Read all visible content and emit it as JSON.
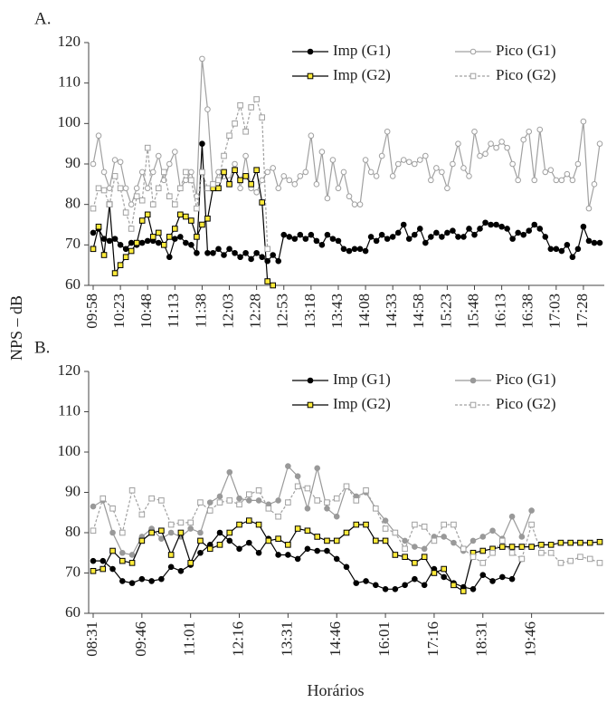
{
  "chart_data": [
    {
      "type": "line",
      "panel_label": "A.",
      "y_label": "NPS – dB",
      "categories": [
        "09:58",
        null,
        null,
        null,
        null,
        "10:23",
        null,
        null,
        null,
        null,
        "10:48",
        null,
        null,
        null,
        null,
        "11:13",
        null,
        null,
        null,
        null,
        "11:38",
        null,
        null,
        null,
        null,
        "12:03",
        null,
        null,
        null,
        null,
        "12:28",
        null,
        null,
        null,
        null,
        "12:53",
        null,
        null,
        null,
        null,
        "13:18",
        null,
        null,
        null,
        null,
        "13:43",
        null,
        null,
        null,
        null,
        "14:08",
        null,
        null,
        null,
        null,
        "14:33",
        null,
        null,
        null,
        null,
        "14:58",
        null,
        null,
        null,
        null,
        "15:23",
        null,
        null,
        null,
        null,
        "15:48",
        null,
        null,
        null,
        null,
        "16:13",
        null,
        null,
        null,
        null,
        "16:38",
        null,
        null,
        null,
        null,
        "17:03",
        null,
        null,
        null,
        null,
        "17:28",
        null,
        null,
        null
      ],
      "ylim": [
        60,
        120
      ],
      "yticks": [
        60,
        70,
        80,
        90,
        100,
        110,
        120
      ],
      "legend": "upper right",
      "series": [
        {
          "name": "Imp (G1)",
          "color": "#000000",
          "marker": "circle",
          "marker_fill": "#000000",
          "dashed": false,
          "values": [
            73,
            74,
            71.5,
            71,
            71.5,
            70,
            69,
            70.5,
            70,
            70.5,
            71,
            71,
            70.5,
            70,
            67,
            71.5,
            72,
            70.5,
            70,
            68,
            95,
            68,
            68,
            69,
            67.5,
            69,
            68,
            67,
            68,
            66.5,
            68,
            67,
            66,
            67.5,
            66,
            72.5,
            72,
            71.5,
            72.5,
            71.5,
            72.5,
            71,
            70,
            72.5,
            71.5,
            71,
            69,
            68.5,
            69,
            69,
            68.5,
            72,
            71,
            72.5,
            71.5,
            72,
            73,
            75,
            71.5,
            72.5,
            74,
            70.5,
            72,
            73,
            72,
            73,
            73.5,
            72,
            72,
            74,
            72.5,
            74,
            75.5,
            75,
            75,
            74.5,
            74,
            71.5,
            73,
            72.5,
            73.5,
            75,
            74,
            72,
            69,
            69,
            68.5,
            70,
            67,
            69,
            74.5,
            71,
            70.5,
            70.5
          ]
        },
        {
          "name": "Pico (G1)",
          "color": "#a0a0a0",
          "marker": "circle",
          "marker_fill": "#ffffff",
          "dashed": false,
          "values": [
            90,
            97,
            88,
            84,
            91,
            90.5,
            84,
            80,
            84,
            88,
            84,
            88,
            92,
            86,
            90,
            93,
            84,
            86,
            88,
            82,
            116,
            103.5,
            84,
            88,
            87,
            86,
            90,
            84,
            92,
            84,
            83,
            86,
            88,
            89,
            84,
            87,
            86,
            85,
            87,
            88,
            97,
            85,
            93,
            81.5,
            91,
            84,
            88,
            82,
            80,
            80,
            91,
            88,
            87,
            92,
            98,
            87,
            90,
            91,
            90.5,
            90,
            91,
            92,
            86,
            89,
            88,
            84,
            90,
            95,
            89,
            87,
            98,
            92,
            92.5,
            95,
            94,
            95.5,
            94,
            90,
            86,
            96,
            98,
            86,
            98.5,
            88,
            88.5,
            86,
            86,
            87.5,
            86,
            90,
            100.5,
            79,
            85,
            95
          ]
        },
        {
          "name": "Imp (G2)",
          "color": "#000000",
          "marker": "square",
          "marker_fill": "#ffeb3b",
          "dashed": false,
          "values": [
            69,
            74.5,
            67.5,
            80,
            63,
            65,
            67,
            68.5,
            70.5,
            76,
            77.5,
            72,
            73,
            70,
            72,
            74,
            77.5,
            77,
            76,
            72,
            75,
            76.5,
            84,
            84,
            88,
            85,
            88.5,
            86,
            87,
            85,
            88.5,
            80.5,
            61,
            60,
            null,
            null,
            null,
            null,
            null,
            null,
            null,
            null,
            null,
            null,
            null,
            null,
            null,
            null,
            null,
            null,
            null,
            null,
            null,
            null,
            null,
            null,
            null,
            null,
            null,
            null,
            null,
            null,
            null,
            null,
            null,
            null,
            null,
            null,
            null,
            null,
            null,
            null,
            null,
            null,
            null,
            null,
            null,
            null,
            null,
            null,
            null,
            null,
            null,
            null,
            null,
            null,
            null,
            null,
            null,
            null,
            null,
            null,
            null,
            null
          ]
        },
        {
          "name": "Pico (G2)",
          "color": "#a0a0a0",
          "marker": "square",
          "marker_fill": "#ffffff",
          "dashed": true,
          "values": [
            79,
            84,
            83.5,
            80,
            87,
            84,
            78,
            74,
            82,
            81,
            94,
            80,
            84,
            88,
            82,
            80,
            84,
            88,
            86,
            79,
            88,
            84,
            85,
            86,
            92,
            97,
            100,
            104.5,
            98,
            104,
            106,
            101.5,
            69,
            null,
            null,
            null,
            null,
            null,
            null,
            null,
            null,
            null,
            null,
            null,
            null,
            null,
            null,
            null,
            null,
            null,
            null,
            null,
            null,
            null,
            null,
            null,
            null,
            null,
            null,
            null,
            null,
            null,
            null,
            null,
            null,
            null,
            null,
            null,
            null,
            null,
            null,
            null,
            null,
            null,
            null,
            null,
            null,
            null,
            null,
            null,
            null,
            null,
            null,
            null,
            null,
            null,
            null,
            null,
            null,
            null,
            null,
            null,
            null,
            null
          ]
        }
      ]
    },
    {
      "type": "line",
      "panel_label": "B.",
      "x_label": "Horários",
      "categories": [
        "08:31",
        null,
        null,
        null,
        null,
        "09:46",
        null,
        null,
        null,
        null,
        "11:01",
        null,
        null,
        null,
        null,
        "12:16",
        null,
        null,
        null,
        null,
        "13:31",
        null,
        null,
        null,
        null,
        "14:46",
        null,
        null,
        null,
        null,
        "16:01",
        null,
        null,
        null,
        null,
        "17:16",
        null,
        null,
        null,
        null,
        "18:31",
        null,
        null,
        null,
        null,
        "19:46",
        null,
        null,
        null,
        null,
        null,
        null,
        null
      ],
      "ylim": [
        60,
        120
      ],
      "yticks": [
        60,
        70,
        80,
        90,
        100,
        110,
        120
      ],
      "legend": "upper right",
      "series": [
        {
          "name": "Imp (G1)",
          "color": "#000000",
          "marker": "circle",
          "marker_fill": "#000000",
          "dashed": false,
          "values": [
            73,
            73,
            71,
            68,
            67.5,
            68.5,
            68,
            68.5,
            71.5,
            70.5,
            72,
            75,
            77,
            80,
            78,
            76,
            77.5,
            75,
            78.5,
            74.5,
            74.5,
            73.5,
            76,
            75.5,
            75.5,
            73.5,
            71.5,
            67.5,
            68,
            67,
            66,
            66,
            67,
            68.5,
            67,
            71,
            69,
            67.5,
            66.5,
            66,
            69.5,
            68,
            69,
            68.5,
            73.5,
            null,
            null,
            null,
            null,
            null,
            null,
            null,
            null
          ]
        },
        {
          "name": "Pico (G1)",
          "color": "#999999",
          "marker": "circle",
          "marker_fill": "#999999",
          "dashed": false,
          "values": [
            86.5,
            88,
            80,
            75,
            74.5,
            79,
            81,
            78.5,
            80,
            79,
            81,
            80,
            87.5,
            89,
            95,
            88.5,
            88,
            88,
            87,
            88,
            96.5,
            94,
            86,
            96,
            86,
            84,
            91.5,
            89,
            90,
            86,
            83,
            80,
            78,
            76.5,
            76,
            79,
            79,
            77.5,
            75.5,
            78,
            79,
            80.5,
            78.5,
            84,
            79,
            85.5,
            null,
            null,
            null,
            null,
            null,
            null,
            null
          ]
        },
        {
          "name": "Imp (G2)",
          "color": "#000000",
          "marker": "square",
          "marker_fill": "#ffeb3b",
          "dashed": false,
          "values": [
            70.5,
            71,
            75.5,
            73,
            72.5,
            78,
            80,
            80.5,
            74.5,
            80,
            72.5,
            78,
            76,
            77,
            80,
            82,
            83,
            82,
            78,
            78.5,
            77,
            81,
            80.5,
            79,
            78,
            78,
            80,
            82,
            82,
            78,
            78,
            74.5,
            74,
            72.5,
            74,
            70,
            71,
            67,
            65.5,
            75,
            75.5,
            76,
            76.5,
            76.5,
            76.5,
            76.5,
            77,
            77,
            77.5,
            77.5,
            77.5,
            77.5,
            77.7
          ]
        },
        {
          "name": "Pico (G2)",
          "color": "#a0a0a0",
          "marker": "square",
          "marker_fill": "#ffffff",
          "dashed": true,
          "values": [
            80.5,
            88.5,
            86,
            80,
            90.5,
            84.5,
            88.5,
            88,
            82,
            82.5,
            82.5,
            87.5,
            85.5,
            87.5,
            88,
            87,
            89.5,
            90.5,
            86,
            84,
            87.5,
            91.5,
            91,
            88,
            87.5,
            88.5,
            91.5,
            88,
            90.5,
            86,
            81,
            80,
            76,
            82,
            81.5,
            78,
            82,
            82,
            76,
            74,
            72.5,
            75,
            78,
            75,
            73.5,
            82,
            75,
            75,
            72.5,
            73,
            74,
            73.5,
            72.5
          ]
        }
      ]
    }
  ]
}
